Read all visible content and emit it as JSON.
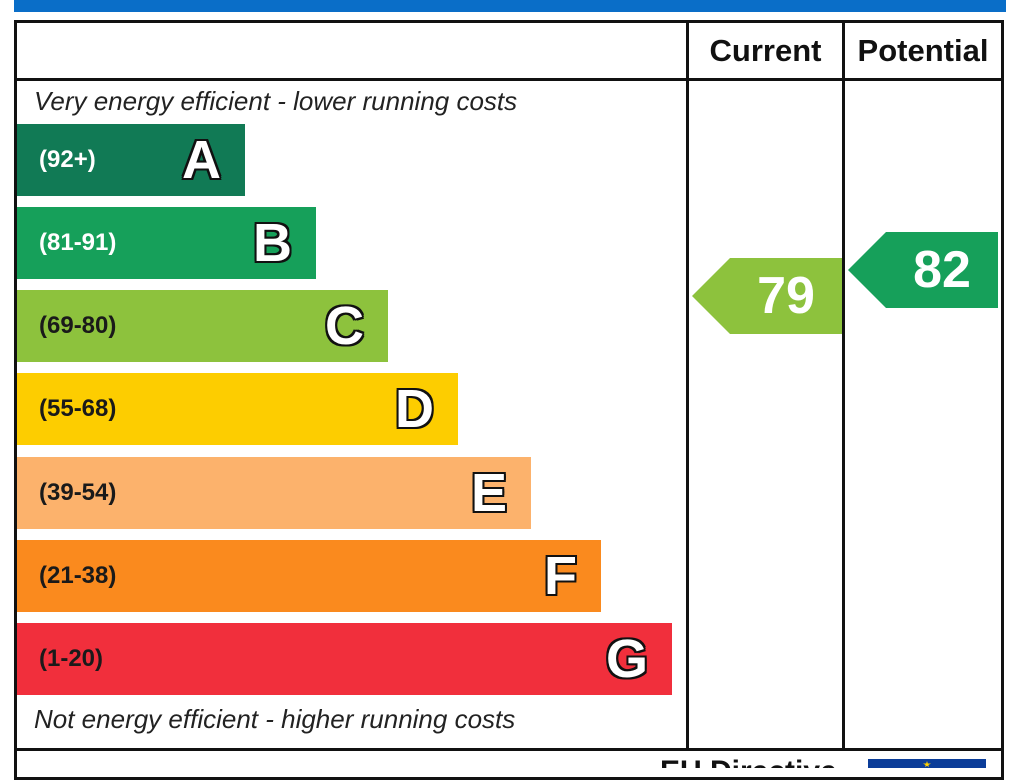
{
  "colors": {
    "top_bar": "#0a6ec8",
    "A": "#117a55",
    "B": "#16a05a",
    "C": "#8dc23d",
    "D": "#fdcd00",
    "E": "#fcb26c",
    "F": "#fa8a1e",
    "G": "#f12f3c",
    "eu_flag": "#0b3d99",
    "eu_star": "#ffd200"
  },
  "header": {
    "current": "Current",
    "potential": "Potential"
  },
  "notes": {
    "top": "Very energy efficient - lower running costs",
    "bottom": "Not energy efficient - higher running costs"
  },
  "chart_data": {
    "type": "bar",
    "bands": [
      {
        "letter": "A",
        "range": "(92+)",
        "min": 92,
        "max": null
      },
      {
        "letter": "B",
        "range": "(81-91)",
        "min": 81,
        "max": 91
      },
      {
        "letter": "C",
        "range": "(69-80)",
        "min": 69,
        "max": 80
      },
      {
        "letter": "D",
        "range": "(55-68)",
        "min": 55,
        "max": 68
      },
      {
        "letter": "E",
        "range": "(39-54)",
        "min": 39,
        "max": 54
      },
      {
        "letter": "F",
        "range": "(21-38)",
        "min": 21,
        "max": 38
      },
      {
        "letter": "G",
        "range": "(1-20)",
        "min": 1,
        "max": 20
      }
    ],
    "current": {
      "value": 79,
      "band": "C"
    },
    "potential": {
      "value": 82,
      "band": "B"
    }
  },
  "footer": {
    "text": "EU Directive"
  }
}
